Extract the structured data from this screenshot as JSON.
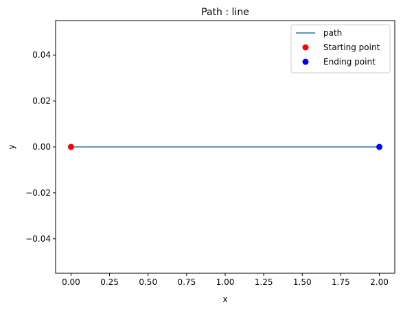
{
  "chart_data": {
    "type": "line",
    "title": "Path : line",
    "xlabel": "x",
    "ylabel": "y",
    "xlim": [
      -0.1,
      2.1
    ],
    "ylim": [
      -0.055,
      0.055
    ],
    "x_ticks": [
      0.0,
      0.25,
      0.5,
      0.75,
      1.0,
      1.25,
      1.5,
      1.75,
      2.0
    ],
    "x_tick_labels": [
      "0.00",
      "0.25",
      "0.50",
      "0.75",
      "1.00",
      "1.25",
      "1.50",
      "1.75",
      "2.00"
    ],
    "y_ticks": [
      -0.04,
      -0.02,
      0.0,
      0.02,
      0.04
    ],
    "y_tick_labels": [
      "−0.04",
      "−0.02",
      "0.00",
      "0.02",
      "0.04"
    ],
    "grid": false,
    "legend_position": "top-right",
    "series": [
      {
        "name": "path",
        "type": "line",
        "color": "#1f77b4",
        "x": [
          0,
          2
        ],
        "y": [
          0,
          0
        ]
      },
      {
        "name": "Starting point",
        "type": "scatter",
        "color": "#ff0000",
        "x": [
          0
        ],
        "y": [
          0
        ]
      },
      {
        "name": "Ending point",
        "type": "scatter",
        "color": "#0000ff",
        "x": [
          2
        ],
        "y": [
          0
        ]
      }
    ]
  }
}
